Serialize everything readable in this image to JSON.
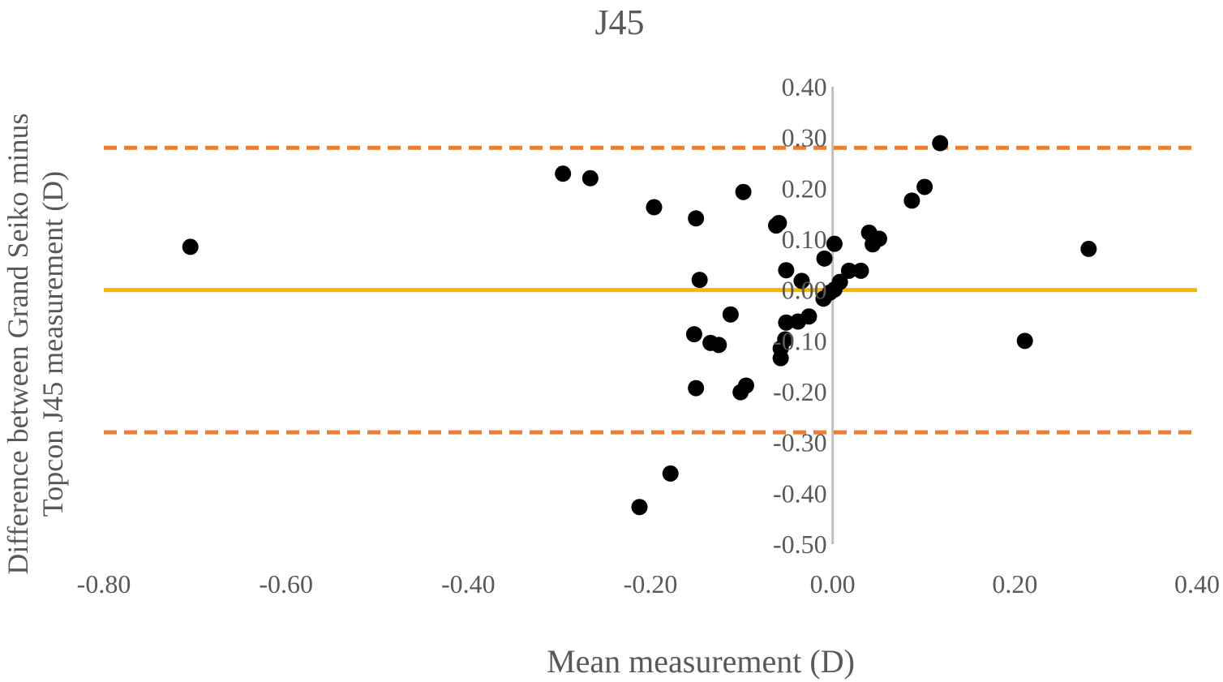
{
  "chart_data": {
    "type": "scatter",
    "title": "J45",
    "xlabel": "Mean measurement (D)",
    "ylabel_lines": [
      "Difference between Grand Seiko minus",
      "Topcon J45 measurement (D)"
    ],
    "xlim": [
      -0.8,
      0.4
    ],
    "ylim": [
      -0.5,
      0.4
    ],
    "x_ticks": [
      "-0.80",
      "-0.60",
      "-0.40",
      "-0.20",
      "0.00",
      "0.20",
      "0.40"
    ],
    "y_ticks": [
      "0.40",
      "0.30",
      "0.20",
      "0.10",
      "0.00",
      "-0.10",
      "-0.20",
      "-0.30",
      "-0.40",
      "-0.50"
    ],
    "grid": false,
    "colors": {
      "points": "#000000",
      "mean_line": "#f5b800",
      "limit_lines": "#ed7d31",
      "axis": "#bfbfbf"
    },
    "mean_difference": 0.0,
    "limits_of_agreement": [
      0.28,
      -0.28
    ],
    "points": [
      {
        "x": -0.705,
        "y": 0.085
      },
      {
        "x": -0.296,
        "y": 0.229
      },
      {
        "x": -0.266,
        "y": 0.22
      },
      {
        "x": -0.196,
        "y": 0.163
      },
      {
        "x": -0.15,
        "y": 0.141
      },
      {
        "x": -0.146,
        "y": 0.02
      },
      {
        "x": -0.098,
        "y": 0.193
      },
      {
        "x": -0.062,
        "y": 0.127
      },
      {
        "x": -0.059,
        "y": 0.132
      },
      {
        "x": -0.051,
        "y": 0.039
      },
      {
        "x": -0.034,
        "y": 0.018
      },
      {
        "x": -0.112,
        "y": -0.048
      },
      {
        "x": -0.152,
        "y": -0.087
      },
      {
        "x": -0.134,
        "y": -0.104
      },
      {
        "x": -0.125,
        "y": -0.108
      },
      {
        "x": -0.051,
        "y": -0.064
      },
      {
        "x": -0.052,
        "y": -0.097
      },
      {
        "x": -0.057,
        "y": -0.115
      },
      {
        "x": -0.057,
        "y": -0.134
      },
      {
        "x": -0.038,
        "y": -0.062
      },
      {
        "x": -0.026,
        "y": -0.052
      },
      {
        "x": -0.01,
        "y": -0.017
      },
      {
        "x": -0.003,
        "y": -0.005
      },
      {
        "x": 0.002,
        "y": 0.001
      },
      {
        "x": 0.008,
        "y": 0.016
      },
      {
        "x": -0.009,
        "y": 0.062
      },
      {
        "x": 0.002,
        "y": 0.091
      },
      {
        "x": 0.018,
        "y": 0.038
      },
      {
        "x": 0.031,
        "y": 0.038
      },
      {
        "x": 0.04,
        "y": 0.113
      },
      {
        "x": 0.044,
        "y": 0.09
      },
      {
        "x": 0.051,
        "y": 0.101
      },
      {
        "x": 0.087,
        "y": 0.176
      },
      {
        "x": 0.101,
        "y": 0.203
      },
      {
        "x": 0.118,
        "y": 0.289
      },
      {
        "x": -0.15,
        "y": -0.193
      },
      {
        "x": -0.095,
        "y": -0.188
      },
      {
        "x": -0.101,
        "y": -0.201
      },
      {
        "x": -0.178,
        "y": -0.361
      },
      {
        "x": -0.212,
        "y": -0.427
      },
      {
        "x": 0.211,
        "y": -0.1
      },
      {
        "x": 0.281,
        "y": 0.081
      }
    ]
  }
}
